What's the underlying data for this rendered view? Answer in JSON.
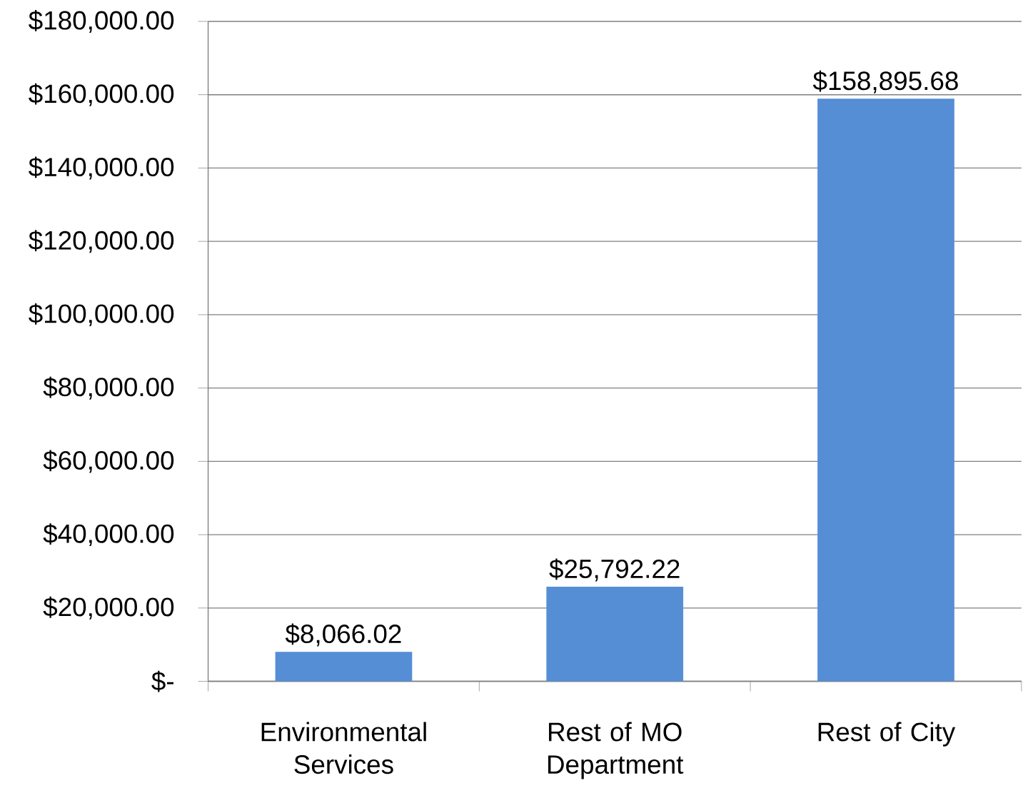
{
  "chart_data": {
    "type": "bar",
    "categories": [
      "Environmental Services",
      "Rest of MO Department",
      "Rest of City"
    ],
    "values": [
      8066.02,
      25792.22,
      158895.68
    ],
    "value_labels": [
      "$8,066.02",
      "$25,792.22",
      "$158,895.68"
    ],
    "color": "#558ed5",
    "ylim": [
      0,
      180000
    ],
    "yticks": [
      {
        "value": 0,
        "label": "$-"
      },
      {
        "value": 20000,
        "label": "$20,000.00"
      },
      {
        "value": 40000,
        "label": "$40,000.00"
      },
      {
        "value": 60000,
        "label": "$60,000.00"
      },
      {
        "value": 80000,
        "label": "$80,000.00"
      },
      {
        "value": 100000,
        "label": "$100,000.00"
      },
      {
        "value": 120000,
        "label": "$120,000.00"
      },
      {
        "value": 140000,
        "label": "$140,000.00"
      },
      {
        "value": 160000,
        "label": "$160,000.00"
      },
      {
        "value": 180000,
        "label": "$180,000.00"
      }
    ],
    "grid": "y"
  }
}
